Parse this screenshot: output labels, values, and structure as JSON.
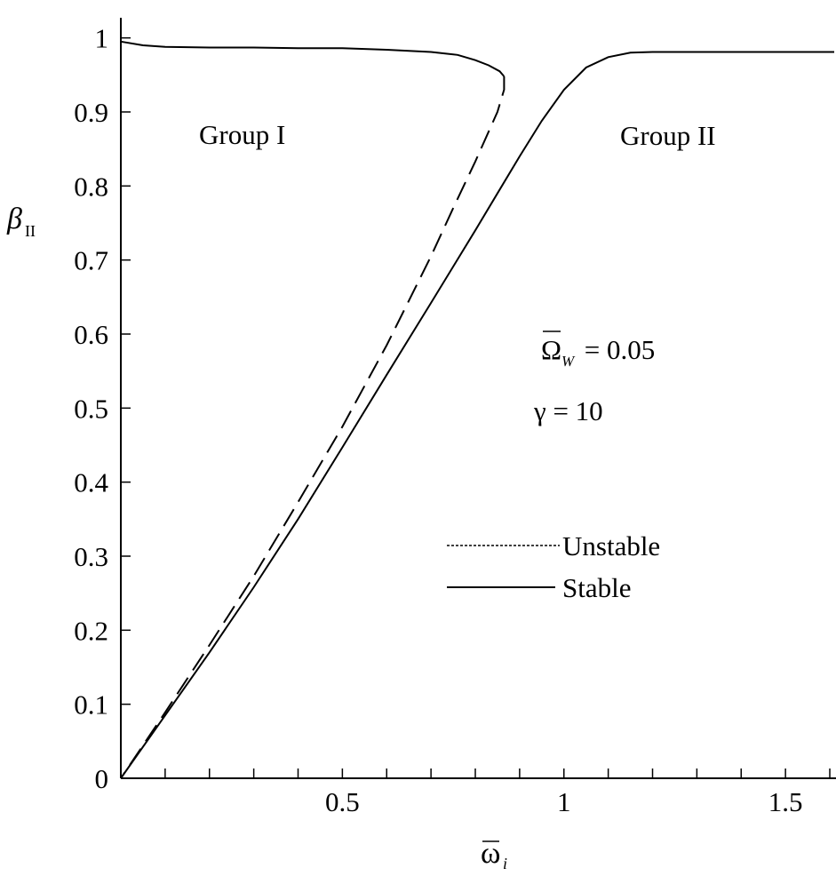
{
  "chart_data": {
    "type": "line",
    "xlabel": {
      "main": "ω",
      "sub": "i",
      "overbar": true
    },
    "ylabel": {
      "main": "β",
      "sub": "II"
    },
    "xlim": [
      0,
      1.61
    ],
    "ylim": [
      0,
      1.02
    ],
    "x_ticks_major": [
      0.5,
      1,
      1.5
    ],
    "x_tick_labels": [
      "0.5",
      "1",
      "1.5"
    ],
    "x_ticks_minor": [
      0.1,
      0.2,
      0.3,
      0.4,
      0.6,
      0.7,
      0.8,
      0.9,
      1.1,
      1.2,
      1.3,
      1.4,
      1.6
    ],
    "y_ticks": [
      0,
      0.1,
      0.2,
      0.3,
      0.4,
      0.5,
      0.6,
      0.7,
      0.8,
      0.9,
      1
    ],
    "y_tick_labels": [
      "0",
      "0.1",
      "0.2",
      "0.3",
      "0.4",
      "0.5",
      "0.6",
      "0.7",
      "0.8",
      "0.9",
      "1"
    ],
    "grid": false,
    "legend_position": "center-right",
    "legend": [
      {
        "label": "Unstable",
        "style": "dashed"
      },
      {
        "label": "Stable",
        "style": "solid"
      }
    ],
    "annotations": {
      "group1": "Group I",
      "group2": "Group II",
      "param_omega": {
        "main": "Ω",
        "sub": "W",
        "rest": " = 0.05",
        "overbar": true
      },
      "param_gamma": "γ = 10"
    },
    "series": [
      {
        "style": "solid",
        "points": [
          [
            0,
            0.995
          ],
          [
            0.05,
            0.99
          ],
          [
            0.1,
            0.988
          ],
          [
            0.2,
            0.987
          ],
          [
            0.3,
            0.987
          ],
          [
            0.4,
            0.986
          ],
          [
            0.5,
            0.986
          ],
          [
            0.6,
            0.984
          ],
          [
            0.7,
            0.981
          ],
          [
            0.76,
            0.977
          ],
          [
            0.8,
            0.97
          ],
          [
            0.83,
            0.963
          ],
          [
            0.855,
            0.955
          ],
          [
            0.865,
            0.948
          ]
        ]
      },
      {
        "style": "dashed",
        "points": [
          [
            0.865,
            0.948
          ],
          [
            0.865,
            0.93
          ],
          [
            0.85,
            0.9
          ],
          [
            0.8,
            0.833
          ],
          [
            0.75,
            0.77
          ],
          [
            0.7,
            0.705
          ],
          [
            0.6,
            0.585
          ],
          [
            0.5,
            0.475
          ],
          [
            0.4,
            0.373
          ],
          [
            0.3,
            0.273
          ],
          [
            0.2,
            0.18
          ],
          [
            0.1,
            0.089
          ],
          [
            0,
            0
          ]
        ]
      },
      {
        "style": "solid",
        "points": [
          [
            0,
            0
          ],
          [
            0.1,
            0.085
          ],
          [
            0.2,
            0.17
          ],
          [
            0.3,
            0.258
          ],
          [
            0.4,
            0.35
          ],
          [
            0.5,
            0.447
          ],
          [
            0.6,
            0.545
          ],
          [
            0.7,
            0.642
          ],
          [
            0.8,
            0.74
          ],
          [
            0.85,
            0.79
          ],
          [
            0.9,
            0.84
          ],
          [
            0.95,
            0.888
          ],
          [
            1.0,
            0.93
          ],
          [
            1.05,
            0.96
          ],
          [
            1.1,
            0.974
          ],
          [
            1.15,
            0.98
          ],
          [
            1.2,
            0.981
          ],
          [
            1.3,
            0.981
          ],
          [
            1.4,
            0.981
          ],
          [
            1.5,
            0.981
          ],
          [
            1.61,
            0.981
          ]
        ]
      }
    ]
  }
}
